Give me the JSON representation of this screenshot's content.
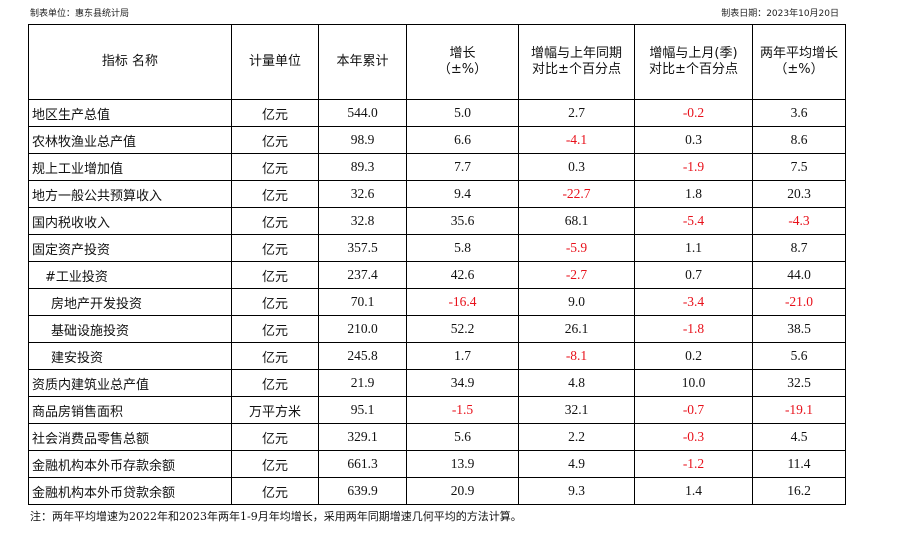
{
  "header": {
    "unit_label": "制表单位：惠东县统计局",
    "date_label": "制表日期：2023年10月20日"
  },
  "table": {
    "columns": [
      "指标 名称",
      "计量单位",
      "本年累计",
      "增长\n（±%）",
      "增幅与上年同期\n对比±个百分点",
      "增幅与上月(季)\n对比±个百分点",
      "两年平均增长\n（±%）"
    ],
    "rows": [
      {
        "name": "地区生产总值",
        "unit": "亿元",
        "value": "544.0",
        "growth": "5.0",
        "yoy": "2.7",
        "mom": "-0.2",
        "two_year": "3.6",
        "indent": 0
      },
      {
        "name": "农林牧渔业总产值",
        "unit": "亿元",
        "value": "98.9",
        "growth": "6.6",
        "yoy": "-4.1",
        "mom": "0.3",
        "two_year": "8.6",
        "indent": 0
      },
      {
        "name": "规上工业增加值",
        "unit": "亿元",
        "value": "89.3",
        "growth": "7.7",
        "yoy": "0.3",
        "mom": "-1.9",
        "two_year": "7.5",
        "indent": 0
      },
      {
        "name": "地方一般公共预算收入",
        "unit": "亿元",
        "value": "32.6",
        "growth": "9.4",
        "yoy": "-22.7",
        "mom": "1.8",
        "two_year": "20.3",
        "indent": 0
      },
      {
        "name": "国内税收收入",
        "unit": "亿元",
        "value": "32.8",
        "growth": "35.6",
        "yoy": "68.1",
        "mom": "-5.4",
        "two_year": "-4.3",
        "indent": 0
      },
      {
        "name": "固定资产投资",
        "unit": "亿元",
        "value": "357.5",
        "growth": "5.8",
        "yoy": "-5.9",
        "mom": "1.1",
        "two_year": "8.7",
        "indent": 0
      },
      {
        "name": "#工业投资",
        "unit": "亿元",
        "value": "237.4",
        "growth": "42.6",
        "yoy": "-2.7",
        "mom": "0.7",
        "two_year": "44.0",
        "indent": 1
      },
      {
        "name": "房地产开发投资",
        "unit": "亿元",
        "value": "70.1",
        "growth": "-16.4",
        "yoy": "9.0",
        "mom": "-3.4",
        "two_year": "-21.0",
        "indent": 2
      },
      {
        "name": "基础设施投资",
        "unit": "亿元",
        "value": "210.0",
        "growth": "52.2",
        "yoy": "26.1",
        "mom": "-1.8",
        "two_year": "38.5",
        "indent": 2
      },
      {
        "name": "建安投资",
        "unit": "亿元",
        "value": "245.8",
        "growth": "1.7",
        "yoy": "-8.1",
        "mom": "0.2",
        "two_year": "5.6",
        "indent": 2
      },
      {
        "name": "资质内建筑业总产值",
        "unit": "亿元",
        "value": "21.9",
        "growth": "34.9",
        "yoy": "4.8",
        "mom": "10.0",
        "two_year": "32.5",
        "indent": 0
      },
      {
        "name": "商品房销售面积",
        "unit": "万平方米",
        "value": "95.1",
        "growth": "-1.5",
        "yoy": "32.1",
        "mom": "-0.7",
        "two_year": "-19.1",
        "indent": 0
      },
      {
        "name": "社会消费品零售总额",
        "unit": "亿元",
        "value": "329.1",
        "growth": "5.6",
        "yoy": "2.2",
        "mom": "-0.3",
        "two_year": "4.5",
        "indent": 0
      },
      {
        "name": "金融机构本外币存款余额",
        "unit": "亿元",
        "value": "661.3",
        "growth": "13.9",
        "yoy": "4.9",
        "mom": "-1.2",
        "two_year": "11.4",
        "indent": 0
      },
      {
        "name": "金融机构本外币贷款余额",
        "unit": "亿元",
        "value": "639.9",
        "growth": "20.9",
        "yoy": "9.3",
        "mom": "1.4",
        "two_year": "16.2",
        "indent": 0
      }
    ]
  },
  "footnote": "注：两年平均增速为2022年和2023年两年1-9月年均增长，采用两年同期增速几何平均的方法计算。",
  "colors": {
    "negative": "#e8111b",
    "text": "#111111",
    "border": "#000000"
  }
}
